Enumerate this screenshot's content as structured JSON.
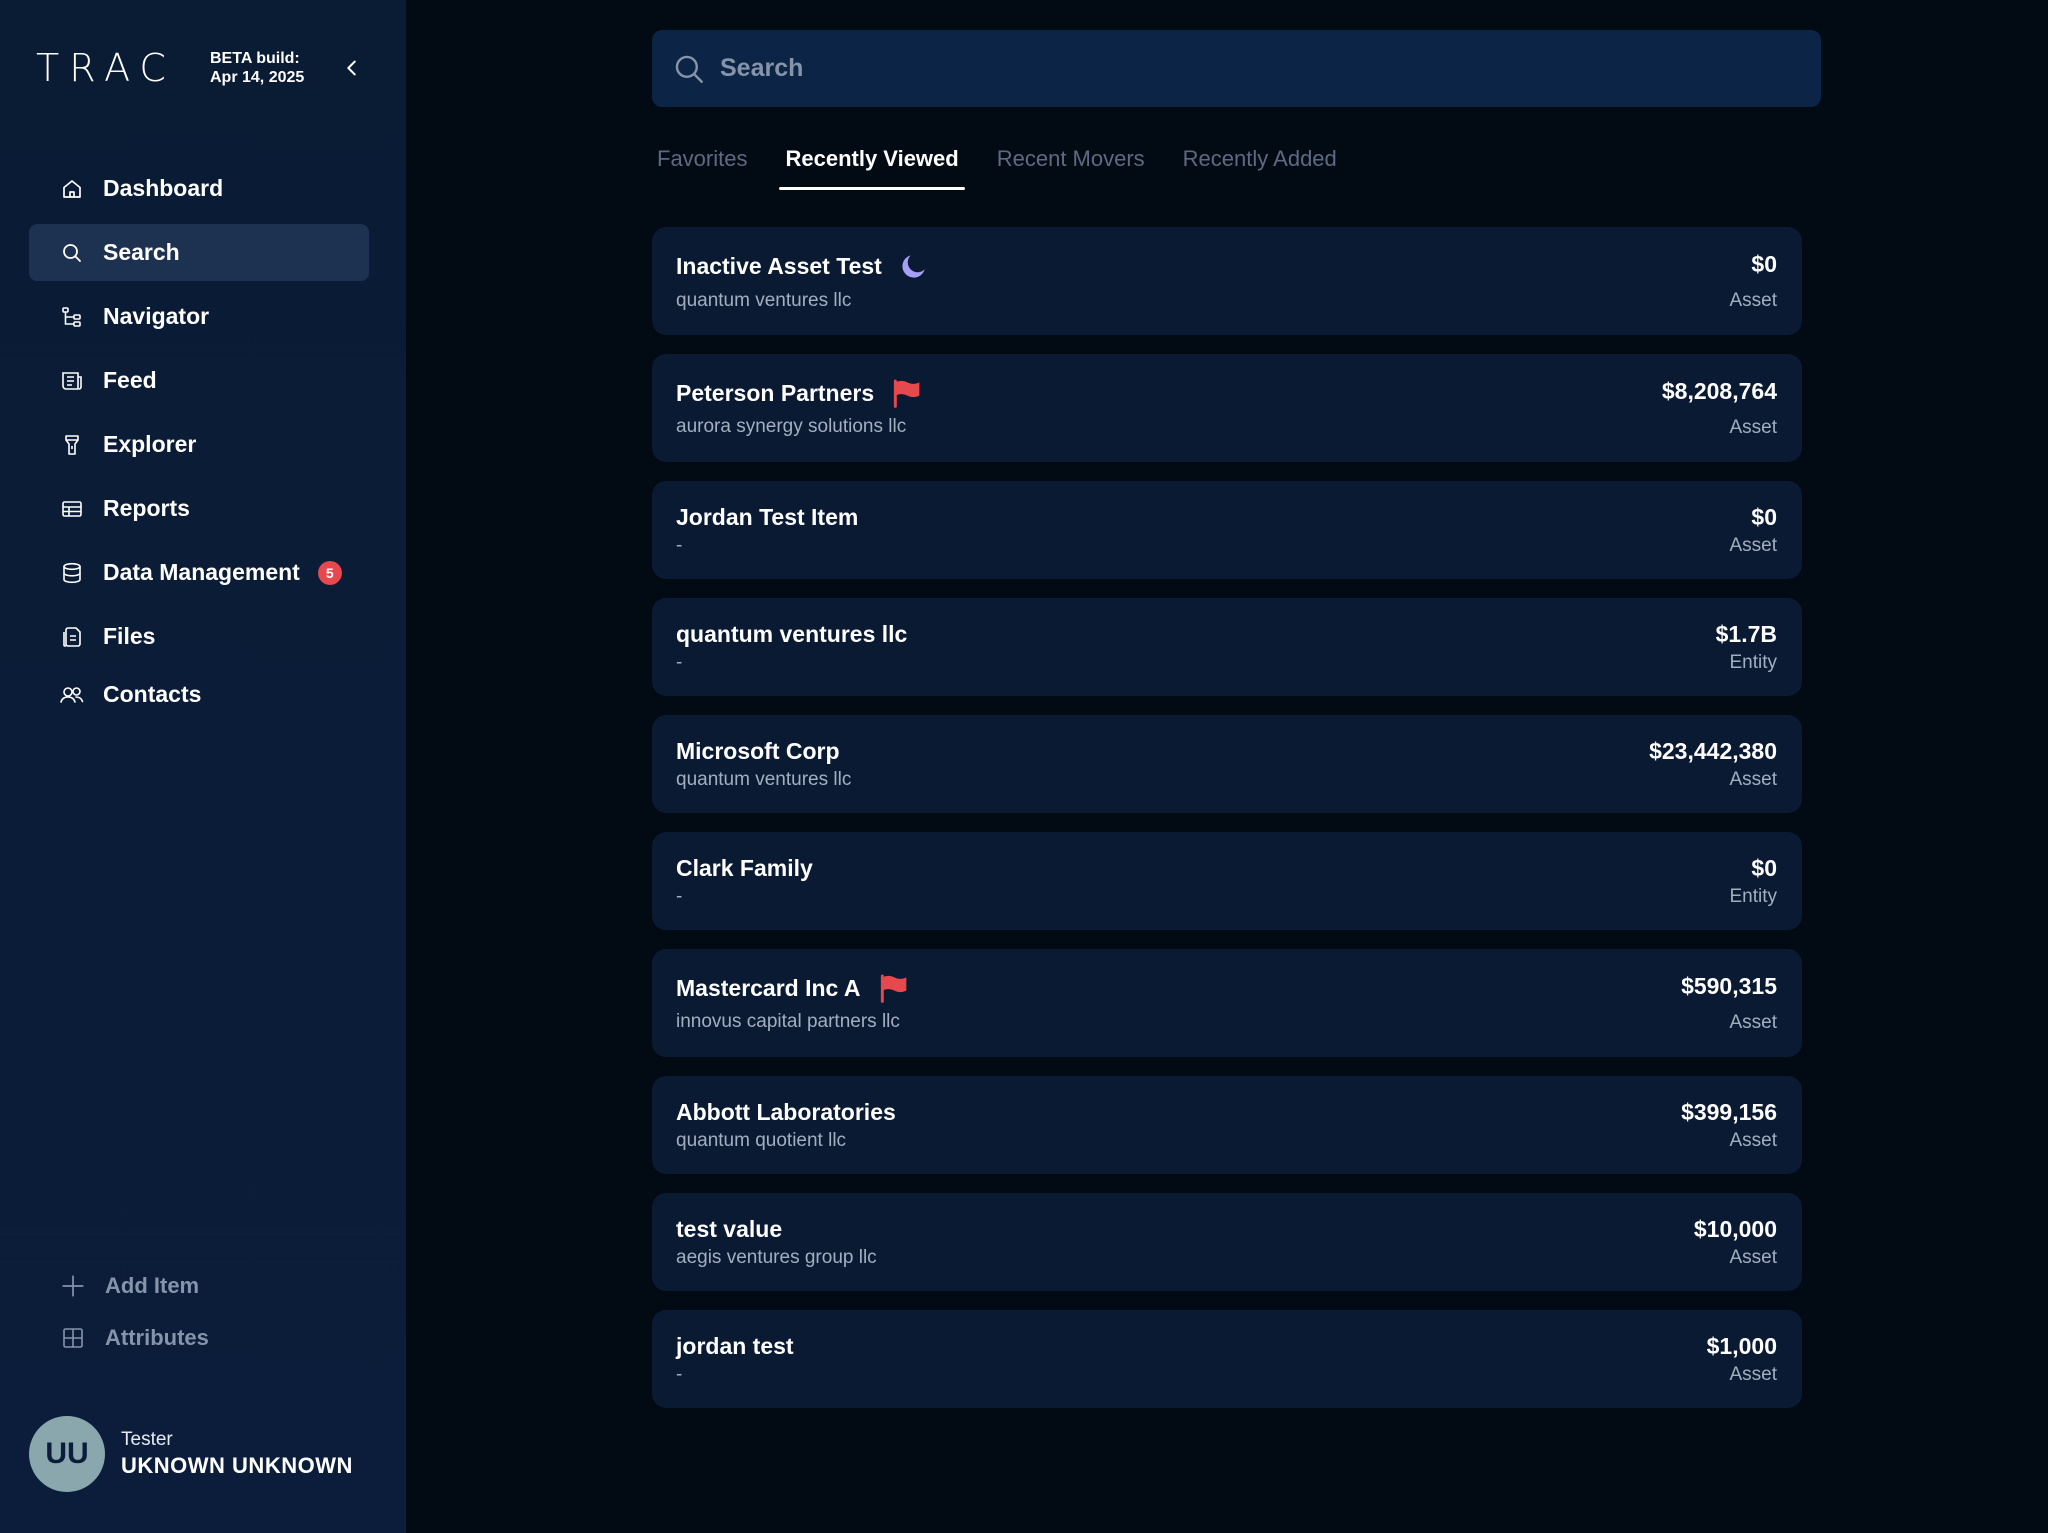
{
  "sidebar": {
    "logo": "TRAC",
    "beta_line1": "BETA build:",
    "beta_line2": "Apr 14, 2025",
    "nav": [
      {
        "label": "Dashboard",
        "icon": "home-icon",
        "active": false
      },
      {
        "label": "Search",
        "icon": "search-icon",
        "active": true
      },
      {
        "label": "Navigator",
        "icon": "tree-icon",
        "active": false
      },
      {
        "label": "Feed",
        "icon": "feed-icon",
        "active": false
      },
      {
        "label": "Explorer",
        "icon": "flashlight-icon",
        "active": false
      },
      {
        "label": "Reports",
        "icon": "table-icon",
        "active": false
      },
      {
        "label": "Data Management",
        "icon": "database-icon",
        "active": false,
        "badge": "5"
      },
      {
        "label": "Files",
        "icon": "files-icon",
        "active": false
      },
      {
        "label": "Contacts",
        "icon": "contacts-icon",
        "active": false
      }
    ],
    "actions": [
      {
        "label": "Add Item",
        "icon": "plus-icon"
      },
      {
        "label": "Attributes",
        "icon": "grid-icon"
      }
    ],
    "user": {
      "initials": "UU",
      "role": "Tester",
      "name": "UKNOWN UNKNOWN"
    }
  },
  "search": {
    "placeholder": "Search"
  },
  "tabs": [
    {
      "label": "Favorites",
      "active": false
    },
    {
      "label": "Recently Viewed",
      "active": true
    },
    {
      "label": "Recent Movers",
      "active": false
    },
    {
      "label": "Recently Added",
      "active": false
    }
  ],
  "items": [
    {
      "title": "Inactive Asset Test",
      "subtitle": "quantum ventures llc",
      "value": "$0",
      "type": "Asset",
      "marker": "moon-icon",
      "marker_color": "#a5a0f5"
    },
    {
      "title": "Peterson Partners",
      "subtitle": "aurora synergy solutions llc",
      "value": "$8,208,764",
      "type": "Asset",
      "marker": "flag-icon",
      "marker_color": "#e5484d"
    },
    {
      "title": "Jordan Test Item",
      "subtitle": "-",
      "value": "$0",
      "type": "Asset",
      "marker": null
    },
    {
      "title": "quantum ventures llc",
      "subtitle": "-",
      "value": "$1.7B",
      "type": "Entity",
      "marker": null
    },
    {
      "title": "Microsoft Corp",
      "subtitle": "quantum ventures llc",
      "value": "$23,442,380",
      "type": "Asset",
      "marker": null
    },
    {
      "title": "Clark Family",
      "subtitle": "-",
      "value": "$0",
      "type": "Entity",
      "marker": null
    },
    {
      "title": "Mastercard Inc A",
      "subtitle": "innovus capital partners llc",
      "value": "$590,315",
      "type": "Asset",
      "marker": "flag-icon",
      "marker_color": "#e5484d"
    },
    {
      "title": "Abbott Laboratories",
      "subtitle": "quantum quotient llc",
      "value": "$399,156",
      "type": "Asset",
      "marker": null
    },
    {
      "title": "test value",
      "subtitle": "aegis ventures group llc",
      "value": "$10,000",
      "type": "Asset",
      "marker": null
    },
    {
      "title": "jordan test",
      "subtitle": "-",
      "value": "$1,000",
      "type": "Asset",
      "marker": null
    }
  ]
}
